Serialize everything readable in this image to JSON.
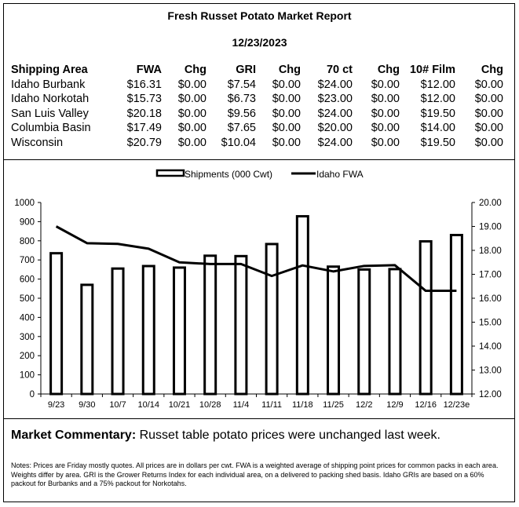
{
  "report": {
    "title": "Fresh Russet Potato Market Report",
    "date": "12/23/2023"
  },
  "table": {
    "headers": [
      "Shipping Area",
      "FWA",
      "Chg",
      "GRI",
      "Chg",
      "70 ct",
      "Chg",
      "10# Film",
      "Chg"
    ],
    "rows": [
      [
        "Idaho Burbank",
        "$16.31",
        "$0.00",
        "$7.54",
        "$0.00",
        "$24.00",
        "$0.00",
        "$12.00",
        "$0.00"
      ],
      [
        "Idaho Norkotah",
        "$15.73",
        "$0.00",
        "$6.73",
        "$0.00",
        "$23.00",
        "$0.00",
        "$12.00",
        "$0.00"
      ],
      [
        "San Luis Valley",
        "$20.18",
        "$0.00",
        "$9.56",
        "$0.00",
        "$24.00",
        "$0.00",
        "$19.50",
        "$0.00"
      ],
      [
        "Columbia Basin",
        "$17.49",
        "$0.00",
        "$7.65",
        "$0.00",
        "$20.00",
        "$0.00",
        "$14.00",
        "$0.00"
      ],
      [
        "Wisconsin",
        "$20.79",
        "$0.00",
        "$10.04",
        "$0.00",
        "$24.00",
        "$0.00",
        "$19.50",
        "$0.00"
      ]
    ]
  },
  "chart_data": {
    "type": "bar",
    "categories": [
      "9/23",
      "9/30",
      "10/7",
      "10/14",
      "10/21",
      "10/28",
      "11/4",
      "11/11",
      "11/18",
      "11/25",
      "12/2",
      "12/9",
      "12/16",
      "12/23e"
    ],
    "series": [
      {
        "name": "Shipments (000 Cwt)",
        "type": "bar",
        "axis": "left",
        "values": [
          735,
          570,
          655,
          668,
          660,
          722,
          720,
          783,
          928,
          665,
          650,
          652,
          797,
          830
        ]
      },
      {
        "name": "Idaho FWA",
        "type": "line",
        "axis": "right",
        "values": [
          19.0,
          18.3,
          18.27,
          18.07,
          17.5,
          17.43,
          17.43,
          16.93,
          17.37,
          17.12,
          17.35,
          17.38,
          16.31,
          16.31
        ]
      }
    ],
    "ylim_left": [
      0,
      1000
    ],
    "yticks_left": [
      "0",
      "100",
      "200",
      "300",
      "400",
      "500",
      "600",
      "700",
      "800",
      "900",
      "1000"
    ],
    "ylim_right": [
      12,
      20
    ],
    "yticks_right": [
      "12.00",
      "13.00",
      "14.00",
      "15.00",
      "16.00",
      "17.00",
      "18.00",
      "19.00",
      "20.00"
    ],
    "legend_position": "top-center",
    "grid": false
  },
  "commentary": {
    "label": "Market Commentary:",
    "text": " Russet table potato prices were unchanged last week."
  },
  "notes": "Notes: Prices are Friday mostly quotes. All prices are in dollars per cwt. FWA is a weighted average of shipping point prices for  common packs in each area. Weights differ by area. GRI is the Grower Returns Index for each individual area, on a delivered to packing shed basis. Idaho GRIs are based on a 60% packout for Burbanks and a 75% packout for Norkotahs.",
  "colors": {
    "ink": "#000000",
    "background": "#ffffff"
  }
}
